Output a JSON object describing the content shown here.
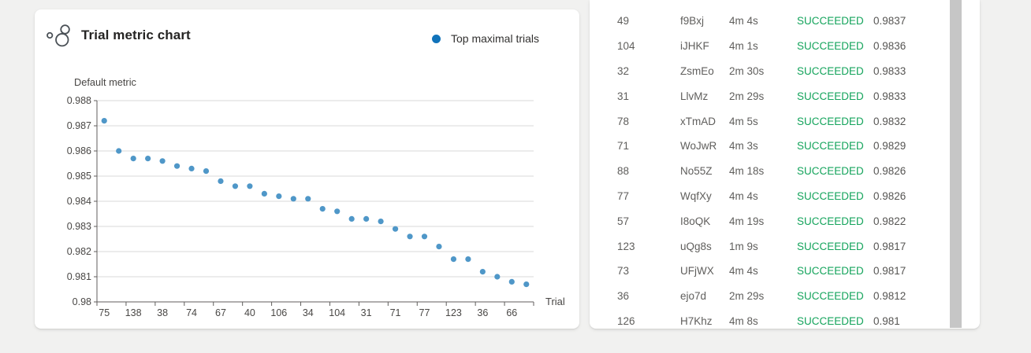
{
  "chart_card": {
    "title": "Trial metric chart",
    "legend": {
      "label": "Top maximal trials",
      "color": "#1173ba"
    }
  },
  "chart_data": {
    "type": "scatter",
    "title": "Trial metric chart",
    "series_name": "Top maximal trials",
    "ylabel": "Default metric",
    "xlabel": "Trial",
    "ylim": [
      0.98,
      0.988
    ],
    "grid": true,
    "legend_position": "top-right",
    "point_color": "#4f97c8",
    "y_tick_labels": [
      "0.988",
      "0.987",
      "0.986",
      "0.985",
      "0.984",
      "0.983",
      "0.982",
      "0.981",
      "0.98"
    ],
    "x_tick_labels": [
      "75",
      "138",
      "38",
      "74",
      "67",
      "40",
      "106",
      "34",
      "104",
      "31",
      "71",
      "77",
      "123",
      "36",
      "66"
    ],
    "values": [
      0.9872,
      0.986,
      0.9857,
      0.9857,
      0.9856,
      0.9854,
      0.9853,
      0.9852,
      0.9848,
      0.9846,
      0.9846,
      0.9843,
      0.9842,
      0.9841,
      0.9841,
      0.9837,
      0.9836,
      0.9833,
      0.9833,
      0.9832,
      0.9829,
      0.9826,
      0.9826,
      0.9822,
      0.9817,
      0.9817,
      0.9812,
      0.981,
      0.9808,
      0.9807
    ]
  },
  "table": {
    "status_color": "#15a45c",
    "rows": [
      {
        "trial": "49",
        "id": "f9Bxj",
        "duration": "4m 4s",
        "status": "SUCCEEDED",
        "metric": "0.9837"
      },
      {
        "trial": "104",
        "id": "iJHKF",
        "duration": "4m 1s",
        "status": "SUCCEEDED",
        "metric": "0.9836"
      },
      {
        "trial": "32",
        "id": "ZsmEo",
        "duration": "2m 30s",
        "status": "SUCCEEDED",
        "metric": "0.9833"
      },
      {
        "trial": "31",
        "id": "LlvMz",
        "duration": "2m 29s",
        "status": "SUCCEEDED",
        "metric": "0.9833"
      },
      {
        "trial": "78",
        "id": "xTmAD",
        "duration": "4m 5s",
        "status": "SUCCEEDED",
        "metric": "0.9832"
      },
      {
        "trial": "71",
        "id": "WoJwR",
        "duration": "4m 3s",
        "status": "SUCCEEDED",
        "metric": "0.9829"
      },
      {
        "trial": "88",
        "id": "No55Z",
        "duration": "4m 18s",
        "status": "SUCCEEDED",
        "metric": "0.9826"
      },
      {
        "trial": "77",
        "id": "WqfXy",
        "duration": "4m 4s",
        "status": "SUCCEEDED",
        "metric": "0.9826"
      },
      {
        "trial": "57",
        "id": "I8oQK",
        "duration": "4m 19s",
        "status": "SUCCEEDED",
        "metric": "0.9822"
      },
      {
        "trial": "123",
        "id": "uQg8s",
        "duration": "1m 9s",
        "status": "SUCCEEDED",
        "metric": "0.9817"
      },
      {
        "trial": "73",
        "id": "UFjWX",
        "duration": "4m 4s",
        "status": "SUCCEEDED",
        "metric": "0.9817"
      },
      {
        "trial": "36",
        "id": "ejo7d",
        "duration": "2m 29s",
        "status": "SUCCEEDED",
        "metric": "0.9812"
      },
      {
        "trial": "126",
        "id": "H7Khz",
        "duration": "4m 8s",
        "status": "SUCCEEDED",
        "metric": "0.981"
      }
    ]
  }
}
